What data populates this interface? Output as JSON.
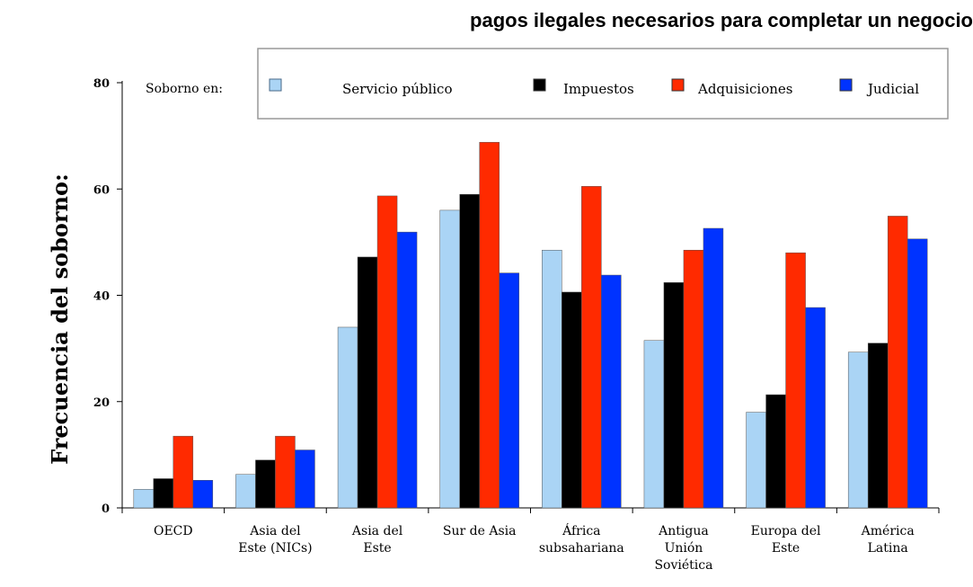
{
  "chart_data": {
    "type": "bar",
    "title": "pagos ilegales necesarios para completar un negocio",
    "ylabel": "Frecuencia del soborno:",
    "xlabel": "",
    "ylim": [
      0,
      80
    ],
    "yticks": [
      0,
      20,
      40,
      60,
      80
    ],
    "grid": false,
    "legend_title": "Soborno en:",
    "legend_position": "top",
    "categories": [
      [
        "OECD"
      ],
      [
        "Asia del",
        "Este (NICs)"
      ],
      [
        "Asia del",
        "Este"
      ],
      [
        "Sur de Asia"
      ],
      [
        "África",
        "subsahariana"
      ],
      [
        "Antigua",
        "Unión",
        "Soviética"
      ],
      [
        "Europa del",
        "Este"
      ],
      [
        "América",
        "Latina"
      ]
    ],
    "series": [
      {
        "name": "Servicio público",
        "color": "#aad4f5",
        "values": [
          3.5,
          6.3,
          34,
          56,
          48.5,
          31.5,
          18,
          29.3
        ]
      },
      {
        "name": "Impuestos",
        "color": "#000000",
        "values": [
          5.5,
          9,
          47.2,
          59,
          40.6,
          42.4,
          21.3,
          31
        ]
      },
      {
        "name": "Adquisiciones",
        "color": "#ff2a00",
        "values": [
          13.5,
          13.5,
          58.7,
          68.8,
          60.5,
          48.5,
          48,
          54.9
        ]
      },
      {
        "name": "Judicial",
        "color": "#0033ff",
        "values": [
          5.2,
          10.9,
          51.9,
          44.2,
          43.8,
          52.6,
          37.7,
          50.6
        ]
      }
    ]
  }
}
